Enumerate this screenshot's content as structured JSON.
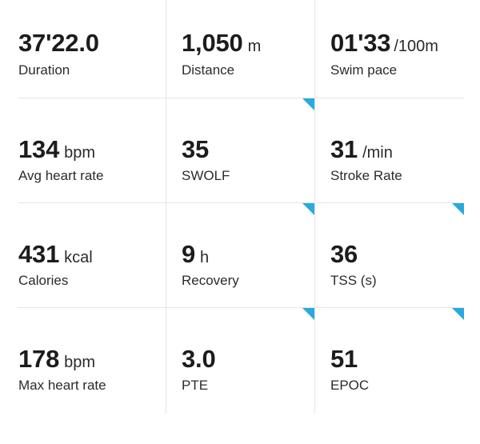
{
  "accent_color": "#2aa9df",
  "stats": [
    {
      "value": "37'22.0",
      "unit": "",
      "label": "Duration"
    },
    {
      "value": "1,050",
      "unit": "m",
      "label": "Distance"
    },
    {
      "value": "01'33",
      "unit": "/100m",
      "label": "Swim pace"
    },
    {
      "value": "134",
      "unit": "bpm",
      "label": "Avg heart rate"
    },
    {
      "value": "35",
      "unit": "",
      "label": "SWOLF"
    },
    {
      "value": "31",
      "unit": "/min",
      "label": "Stroke Rate"
    },
    {
      "value": "431",
      "unit": "kcal",
      "label": "Calories"
    },
    {
      "value": "9",
      "unit": "h",
      "label": "Recovery"
    },
    {
      "value": "36",
      "unit": "",
      "label": "TSS (s)"
    },
    {
      "value": "178",
      "unit": "bpm",
      "label": "Max heart rate"
    },
    {
      "value": "3.0",
      "unit": "",
      "label": "PTE"
    },
    {
      "value": "51",
      "unit": "",
      "label": "EPOC"
    }
  ]
}
